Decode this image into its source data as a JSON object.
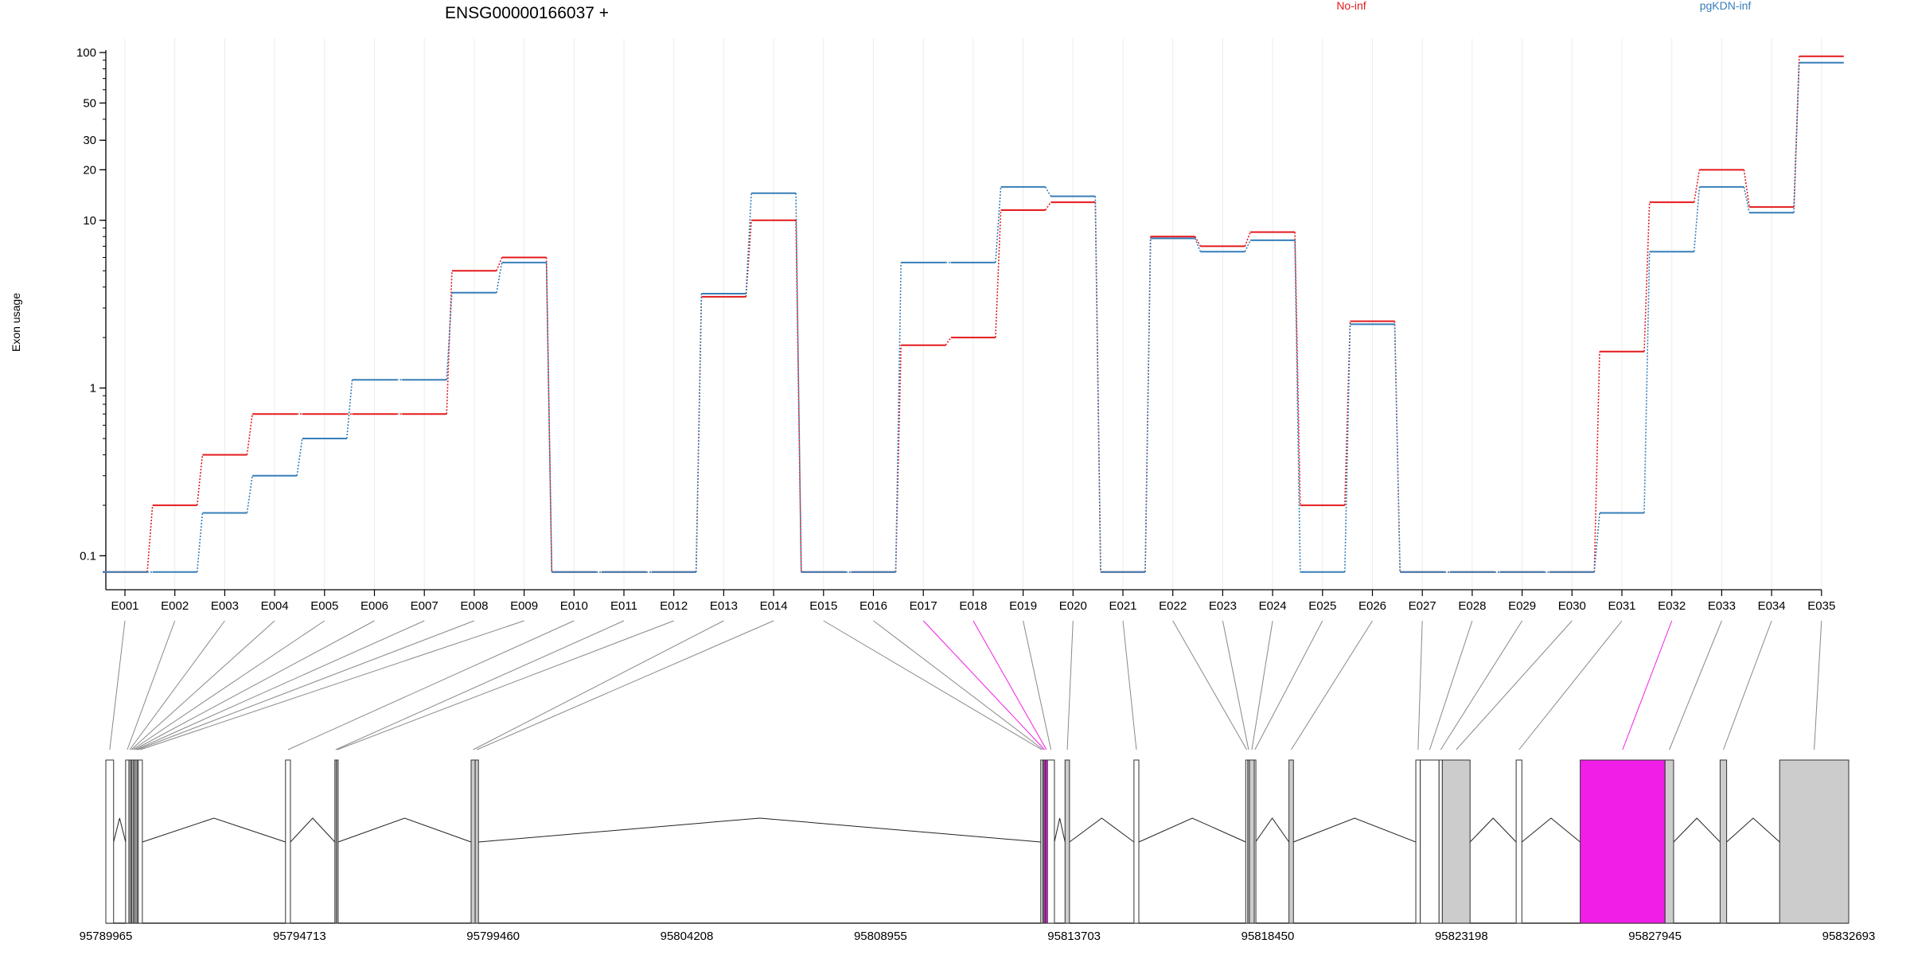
{
  "chart_data": {
    "type": "line",
    "title": "ENSG00000166037 +",
    "ylabel": "Exon usage",
    "y_scale": "log",
    "y_ticks": [
      {
        "value": 0.1,
        "label": "0.1"
      },
      {
        "value": 1,
        "label": "1"
      },
      {
        "value": 10,
        "label": "10"
      },
      {
        "value": 20,
        "label": "20"
      },
      {
        "value": 30,
        "label": "30"
      },
      {
        "value": 50,
        "label": "50"
      },
      {
        "value": 100,
        "label": "100"
      }
    ],
    "ylim": [
      0.07,
      100
    ],
    "grid": "vertical per exon",
    "legend_position": "top-right",
    "categories": [
      "E001",
      "E002",
      "E003",
      "E004",
      "E005",
      "E006",
      "E007",
      "E008",
      "E009",
      "E010",
      "E011",
      "E012",
      "E013",
      "E014",
      "E015",
      "E016",
      "E017",
      "E018",
      "E019",
      "E020",
      "E021",
      "E022",
      "E023",
      "E024",
      "E025",
      "E026",
      "E027",
      "E028",
      "E029",
      "E030",
      "E031",
      "E032",
      "E033",
      "E034",
      "E035"
    ],
    "series": [
      {
        "name": "No-inf",
        "color": "#e41a1c",
        "values": [
          0.08,
          0.2,
          0.4,
          0.7,
          0.7,
          0.7,
          0.7,
          5.0,
          6.0,
          0.08,
          0.08,
          0.08,
          3.5,
          10.0,
          0.08,
          0.08,
          1.8,
          2.0,
          11.5,
          12.8,
          0.08,
          8.0,
          7.0,
          8.5,
          0.2,
          2.5,
          0.08,
          0.08,
          0.08,
          0.08,
          1.65,
          12.8,
          20.0,
          12.0,
          95.0
        ]
      },
      {
        "name": "pgKDN-inf",
        "color": "#377eb8",
        "values": [
          0.08,
          0.08,
          0.18,
          0.3,
          0.5,
          1.12,
          1.12,
          3.7,
          5.6,
          0.08,
          0.08,
          0.08,
          3.65,
          14.5,
          0.08,
          0.08,
          5.6,
          5.6,
          15.8,
          13.9,
          0.08,
          7.8,
          6.5,
          7.6,
          0.08,
          2.4,
          0.08,
          0.08,
          0.08,
          0.08,
          0.18,
          6.5,
          15.8,
          11.1,
          87.0
        ]
      }
    ],
    "gene_model": {
      "genomic_axis_ticks": [
        "95789965",
        "95794713",
        "95799460",
        "95804208",
        "95808955",
        "95813703",
        "95818450",
        "95823198",
        "95827945",
        "95832693"
      ],
      "genomic_range": [
        95789965,
        95832693
      ],
      "highlight_color": "#f01ee6",
      "exons": [
        {
          "id": "E001",
          "start": 95789965,
          "end": 95790155
        },
        {
          "id": "E002",
          "start": 95790450,
          "end": 95790530
        },
        {
          "id": "E003",
          "start": 95790530,
          "end": 95790570
        },
        {
          "id": "E004",
          "start": 95790570,
          "end": 95790600
        },
        {
          "id": "E005",
          "start": 95790600,
          "end": 95790640
        },
        {
          "id": "E006",
          "start": 95790640,
          "end": 95790680
        },
        {
          "id": "E007",
          "start": 95790680,
          "end": 95790730
        },
        {
          "id": "E008",
          "start": 95790730,
          "end": 95790760
        },
        {
          "id": "E009",
          "start": 95790760,
          "end": 95790860
        },
        {
          "id": "E010",
          "start": 95794370,
          "end": 95794490
        },
        {
          "id": "E011",
          "start": 95795580,
          "end": 95795620
        },
        {
          "id": "E012",
          "start": 95795620,
          "end": 95795660
        },
        {
          "id": "E013",
          "start": 95798920,
          "end": 95799020
        },
        {
          "id": "E014",
          "start": 95799020,
          "end": 95799100
        },
        {
          "id": "E015",
          "start": 95812885,
          "end": 95812930
        },
        {
          "id": "E016",
          "start": 95812930,
          "end": 95812960
        },
        {
          "id": "E017",
          "start": 95812960,
          "end": 95813000
        },
        {
          "id": "E018",
          "start": 95813000,
          "end": 95813050
        },
        {
          "id": "E019",
          "start": 95813050,
          "end": 95813220
        },
        {
          "id": "E020",
          "start": 95813480,
          "end": 95813590
        },
        {
          "id": "E021",
          "start": 95815170,
          "end": 95815290
        },
        {
          "id": "E022",
          "start": 95817910,
          "end": 95817960
        },
        {
          "id": "E023",
          "start": 95817960,
          "end": 95818000
        },
        {
          "id": "E024",
          "start": 95818000,
          "end": 95818120
        },
        {
          "id": "E025",
          "start": 95818120,
          "end": 95818150
        },
        {
          "id": "E026",
          "start": 95818970,
          "end": 95819080
        },
        {
          "id": "E027",
          "start": 95822080,
          "end": 95822190
        },
        {
          "id": "E028",
          "start": 95822190,
          "end": 95822650
        },
        {
          "id": "E029",
          "start": 95822650,
          "end": 95822730
        },
        {
          "id": "E030",
          "start": 95822730,
          "end": 95823410
        },
        {
          "id": "E031",
          "start": 95824540,
          "end": 95824680
        },
        {
          "id": "E032",
          "start": 95826110,
          "end": 95828190
        },
        {
          "id": "E033",
          "start": 95828190,
          "end": 95828400
        },
        {
          "id": "E034",
          "start": 95829540,
          "end": 95829700
        },
        {
          "id": "E035",
          "start": 95831000,
          "end": 95832693
        }
      ],
      "highlighted_exons": [
        "E017",
        "E018",
        "E032"
      ]
    }
  }
}
